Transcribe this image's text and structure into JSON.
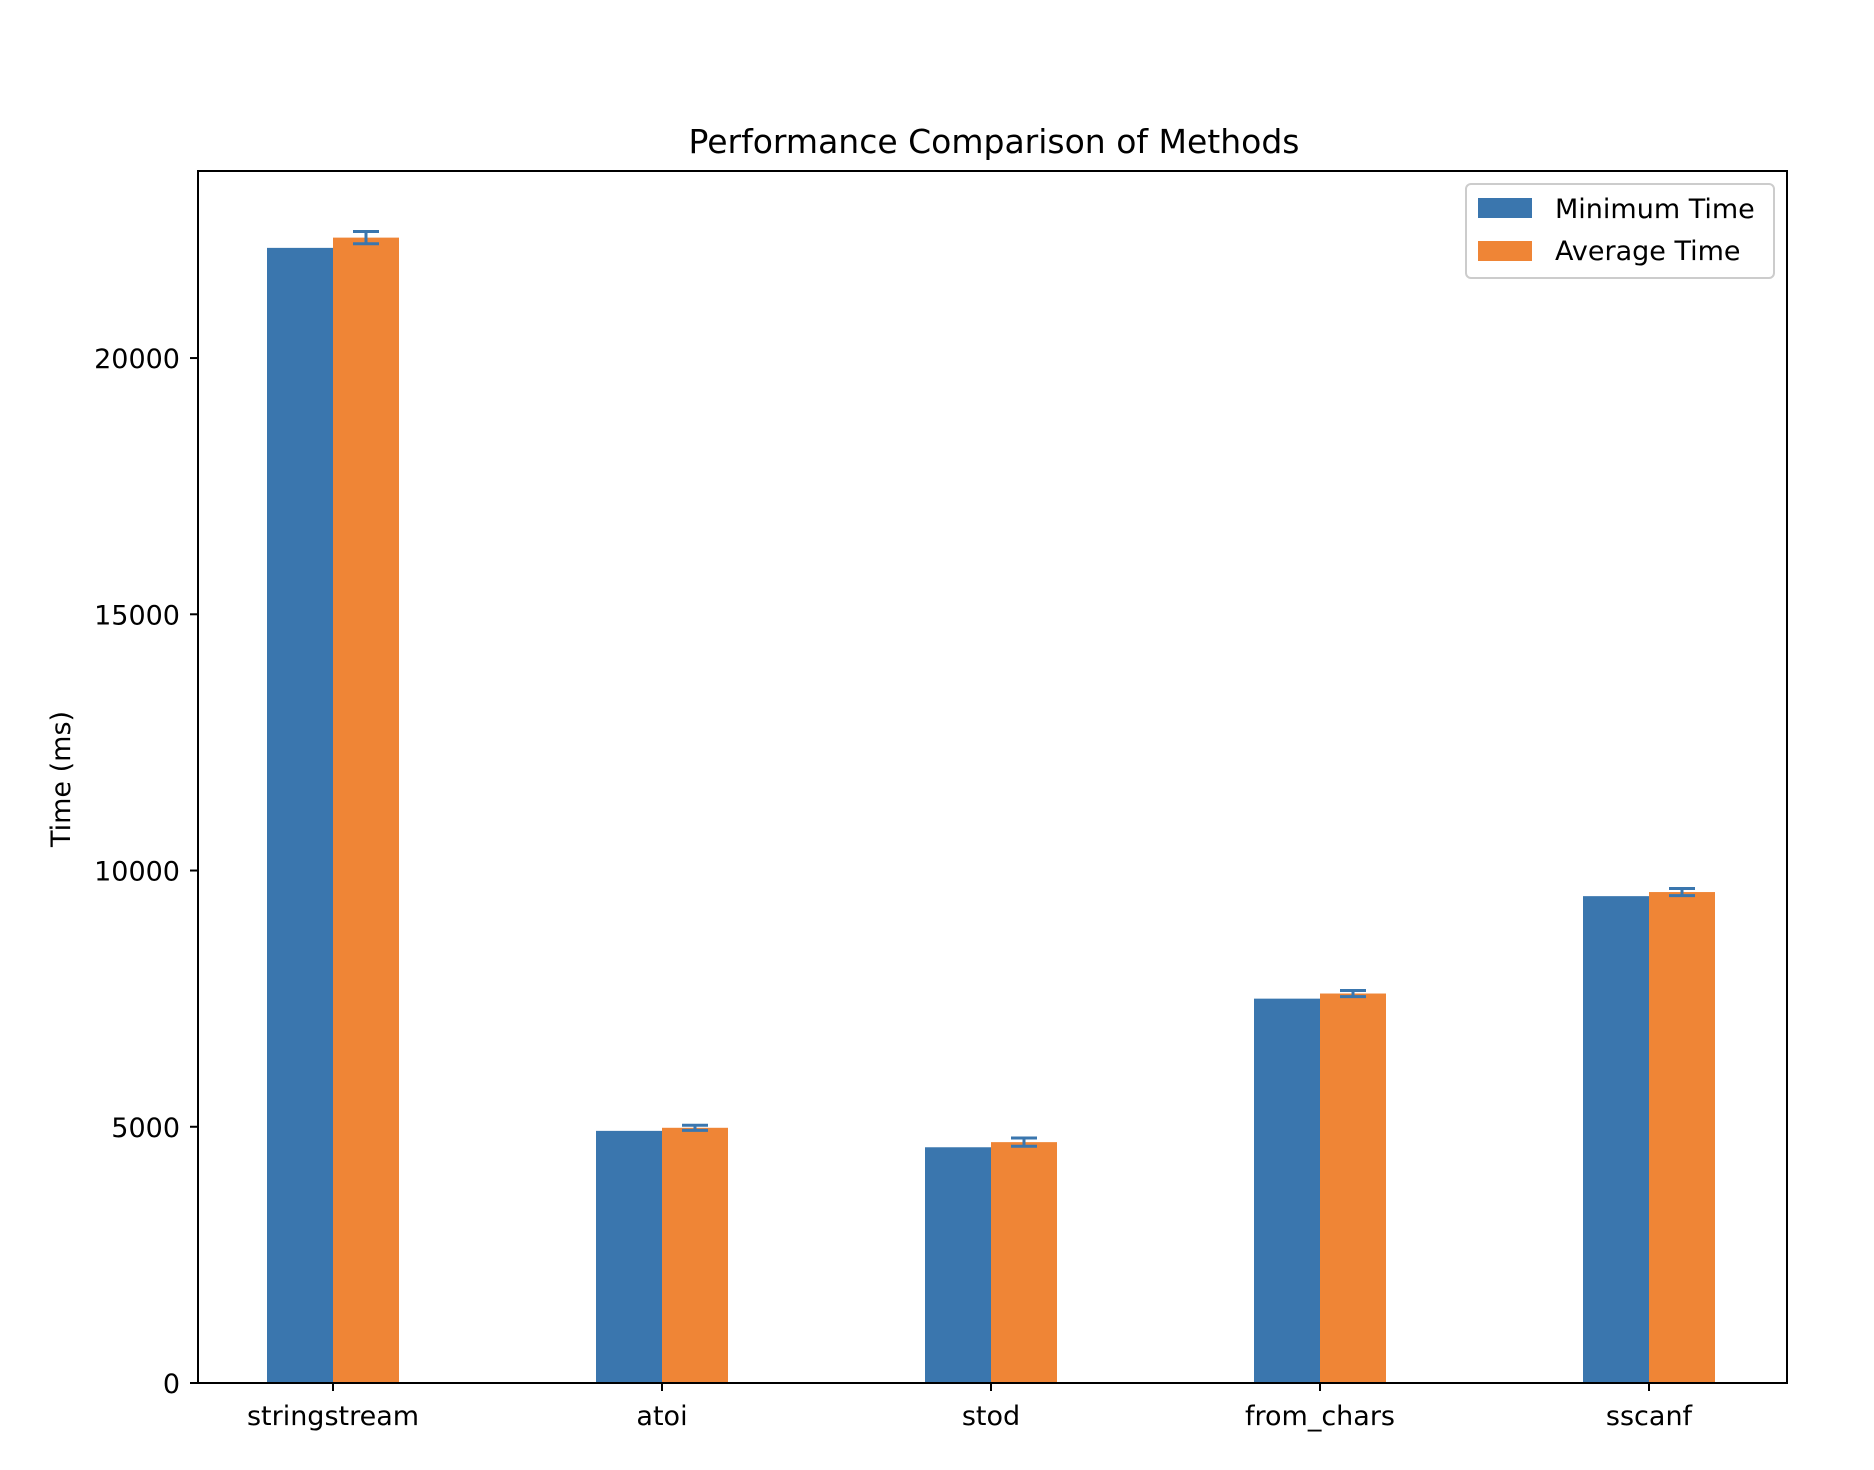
{
  "chart_data": {
    "type": "bar",
    "title": "Performance Comparison of Methods",
    "xlabel": "",
    "ylabel": "Time (ms)",
    "ylim": [
      0,
      23650
    ],
    "yticks": [
      0,
      5000,
      10000,
      15000,
      20000
    ],
    "ytick_labels": [
      "0",
      "5000",
      "10000",
      "15000",
      "20000"
    ],
    "grid": false,
    "legend_position": "top-right",
    "categories": [
      "stringstream",
      "atoi",
      "stod",
      "from_chars",
      "sscanf"
    ],
    "series": [
      {
        "name": "Minimum Time",
        "color": "#3a76ae",
        "values": [
          22150,
          4920,
          4600,
          7500,
          9500
        ]
      },
      {
        "name": "Average Time",
        "color": "#ef8536",
        "values": [
          22350,
          4980,
          4700,
          7600,
          9580
        ],
        "error": [
          120,
          50,
          80,
          60,
          70
        ],
        "error_color": "#3a76ae"
      }
    ]
  }
}
